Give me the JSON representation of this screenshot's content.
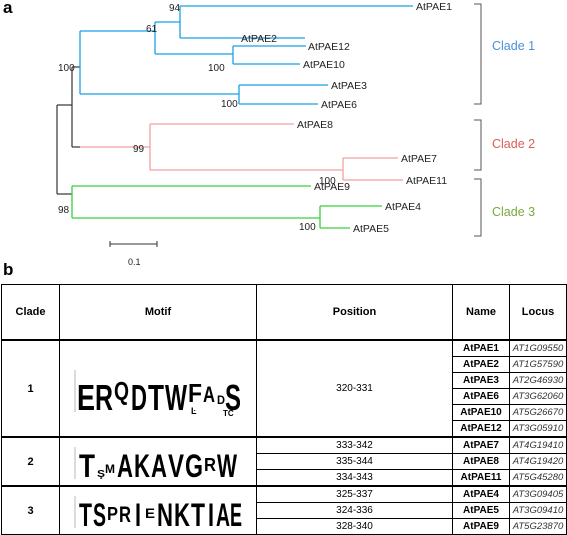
{
  "panels": {
    "a": "a",
    "b": "b"
  },
  "tree": {
    "leaves": [
      "AtPAE1",
      "AtPAE2",
      "AtPAE12",
      "AtPAE10",
      "AtPAE3",
      "AtPAE6",
      "AtPAE8",
      "AtPAE7",
      "AtPAE11",
      "AtPAE9",
      "AtPAE4",
      "AtPAE5"
    ],
    "bootstrap": [
      "94",
      "61",
      "100",
      "100",
      "100",
      "99",
      "100",
      "98",
      "100"
    ],
    "clades": [
      {
        "label": "Clade 1",
        "color": "#4a90d9"
      },
      {
        "label": "Clade 2",
        "color": "#d9605a"
      },
      {
        "label": "Clade 3",
        "color": "#7aa83c"
      }
    ],
    "branch_colors": {
      "clade1": "#1aa0e8",
      "clade2": "#f0a0a0",
      "clade3": "#3ad03a",
      "root": "#333333"
    },
    "scale_label": "0.1"
  },
  "table": {
    "headers": [
      "Clade",
      "Motif",
      "Position",
      "Name",
      "Locus"
    ],
    "groups": [
      {
        "clade": "1",
        "motif_text": "ERQDTWFA_DS",
        "positions": [
          "320-331"
        ],
        "rows": [
          {
            "name": "AtPAE1",
            "locus": "AT1G09550"
          },
          {
            "name": "AtPAE2",
            "locus": "AT1G57590"
          },
          {
            "name": "AtPAE3",
            "locus": "AT2G46930"
          },
          {
            "name": "AtPAE6",
            "locus": "AT3G62060"
          },
          {
            "name": "AtPAE10",
            "locus": "AT5G26670"
          },
          {
            "name": "AtPAE12",
            "locus": "AT3G05910"
          }
        ]
      },
      {
        "clade": "2",
        "motif_text": "T_AKAVGRW",
        "positions": [
          "333-342",
          "335-344",
          "334-343"
        ],
        "rows": [
          {
            "name": "AtPAE7",
            "locus": "AT4G19410"
          },
          {
            "name": "AtPAE8",
            "locus": "AT4G19420"
          },
          {
            "name": "AtPAE11",
            "locus": "AT5G45280"
          }
        ]
      },
      {
        "clade": "3",
        "motif_text": "TSPRIENKTIAE",
        "positions": [
          "325-337",
          "324-336",
          "328-340"
        ],
        "rows": [
          {
            "name": "AtPAE4",
            "locus": "AT3G09405"
          },
          {
            "name": "AtPAE5",
            "locus": "AT3G09410"
          },
          {
            "name": "AtPAE9",
            "locus": "AT5G23870"
          }
        ]
      }
    ]
  }
}
